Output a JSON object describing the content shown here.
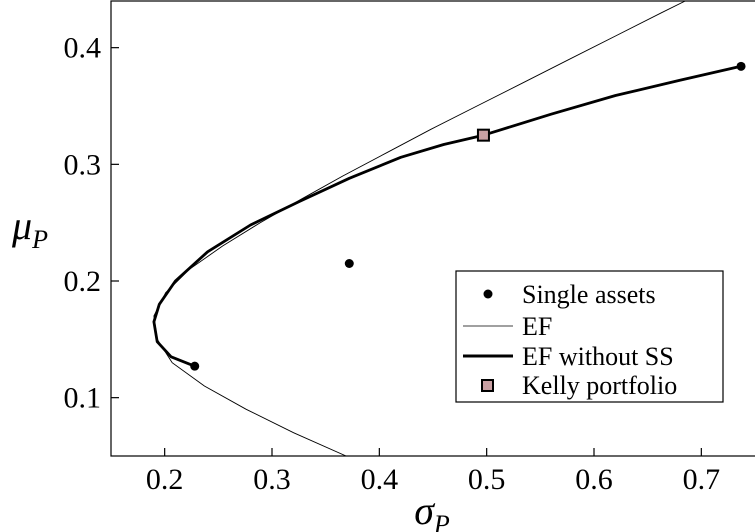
{
  "chart_data": {
    "type": "line",
    "title": "",
    "xlabel": "σ",
    "xlabel_sub": "P",
    "ylabel": "μ",
    "ylabel_sub": "P",
    "xlim": [
      0.15,
      0.75
    ],
    "ylim": [
      0.05,
      0.44
    ],
    "xticks": [
      0.2,
      0.3,
      0.4,
      0.5,
      0.6,
      0.7
    ],
    "xtick_labels": [
      "0.2",
      "0.3",
      "0.4",
      "0.5",
      "0.6",
      "0.7"
    ],
    "yticks": [
      0.1,
      0.2,
      0.3,
      0.4
    ],
    "ytick_labels": [
      "0.1",
      "0.2",
      "0.3",
      "0.4"
    ],
    "grid": false,
    "legend_position": "lower-right",
    "series": [
      {
        "name": "Single assets",
        "kind": "scatter",
        "color": "#000000",
        "points": [
          [
            0.228,
            0.127
          ],
          [
            0.372,
            0.215
          ],
          [
            0.737,
            0.384
          ]
        ]
      },
      {
        "name": "EF",
        "kind": "line",
        "color": "#000000",
        "points": [
          [
            0.369,
            0.05
          ],
          [
            0.32,
            0.07
          ],
          [
            0.276,
            0.09
          ],
          [
            0.237,
            0.11
          ],
          [
            0.207,
            0.13
          ],
          [
            0.193,
            0.15
          ],
          [
            0.19,
            0.17
          ],
          [
            0.201,
            0.19
          ],
          [
            0.223,
            0.21
          ],
          [
            0.254,
            0.23
          ],
          [
            0.289,
            0.25
          ],
          [
            0.327,
            0.27
          ],
          [
            0.366,
            0.29
          ],
          [
            0.407,
            0.31
          ],
          [
            0.448,
            0.33
          ],
          [
            0.491,
            0.35
          ],
          [
            0.534,
            0.37
          ],
          [
            0.577,
            0.39
          ],
          [
            0.62,
            0.41
          ],
          [
            0.663,
            0.43
          ],
          [
            0.685,
            0.44
          ]
        ]
      },
      {
        "name": "EF without SS",
        "kind": "line",
        "color": "#000000",
        "points": [
          [
            0.228,
            0.127
          ],
          [
            0.206,
            0.135
          ],
          [
            0.193,
            0.148
          ],
          [
            0.19,
            0.165
          ],
          [
            0.195,
            0.18
          ],
          [
            0.21,
            0.2
          ],
          [
            0.24,
            0.225
          ],
          [
            0.28,
            0.248
          ],
          [
            0.325,
            0.268
          ],
          [
            0.372,
            0.288
          ],
          [
            0.42,
            0.306
          ],
          [
            0.46,
            0.317
          ],
          [
            0.497,
            0.325
          ],
          [
            0.56,
            0.343
          ],
          [
            0.62,
            0.359
          ],
          [
            0.68,
            0.372
          ],
          [
            0.737,
            0.384
          ]
        ]
      },
      {
        "name": "Kelly portfolio",
        "kind": "marker",
        "color": "#c9a0a3",
        "points": [
          [
            0.497,
            0.325
          ]
        ]
      }
    ]
  }
}
